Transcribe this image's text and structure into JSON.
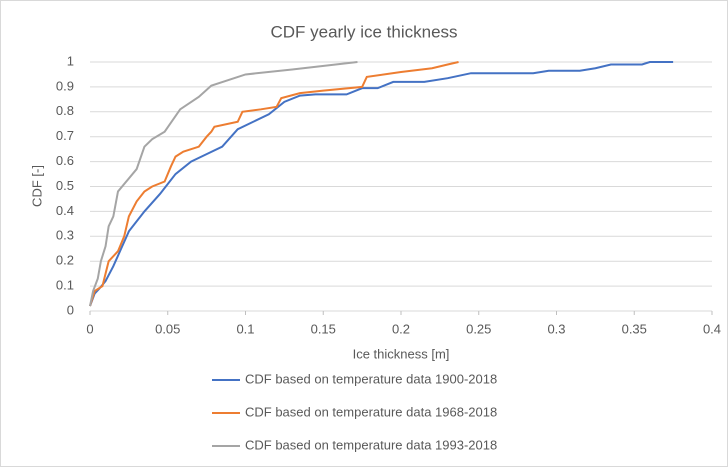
{
  "chart_data": {
    "type": "line",
    "title": "CDF yearly ice thickness",
    "x_label": "Ice thickness [m]",
    "y_label": "CDF [-]",
    "xlim": [
      0,
      0.4
    ],
    "xticks": [
      0,
      0.05,
      0.1,
      0.15,
      0.2,
      0.25,
      0.3,
      0.35,
      0.4
    ],
    "ylim": [
      0,
      1
    ],
    "yticks": [
      0,
      0.1,
      0.2,
      0.3,
      0.4,
      0.5,
      0.6,
      0.7,
      0.8,
      0.9,
      1
    ],
    "grid": true,
    "legend": "bottom",
    "series": [
      {
        "name": "CDF based on temperature data 1900-2018",
        "color": "#4472c4",
        "x": [
          0,
          0.003,
          0.006,
          0.01,
          0.015,
          0.02,
          0.025,
          0.035,
          0.045,
          0.055,
          0.065,
          0.075,
          0.085,
          0.095,
          0.105,
          0.115,
          0.125,
          0.135,
          0.145,
          0.165,
          0.175,
          0.185,
          0.195,
          0.215,
          0.23,
          0.245,
          0.285,
          0.295,
          0.315,
          0.325,
          0.335,
          0.355,
          0.36,
          0.375
        ],
        "values": [
          0.02,
          0.07,
          0.09,
          0.12,
          0.18,
          0.25,
          0.32,
          0.4,
          0.47,
          0.55,
          0.6,
          0.63,
          0.66,
          0.73,
          0.76,
          0.79,
          0.84,
          0.865,
          0.87,
          0.87,
          0.895,
          0.895,
          0.92,
          0.92,
          0.935,
          0.955,
          0.955,
          0.965,
          0.965,
          0.975,
          0.99,
          0.99,
          1.0,
          1.0
        ]
      },
      {
        "name": "CDF based on temperature data 1968-2018",
        "color": "#ed7d31",
        "x": [
          0,
          0.003,
          0.008,
          0.01,
          0.012,
          0.018,
          0.022,
          0.025,
          0.03,
          0.035,
          0.04,
          0.048,
          0.052,
          0.055,
          0.06,
          0.07,
          0.075,
          0.078,
          0.08,
          0.095,
          0.098,
          0.11,
          0.12,
          0.123,
          0.135,
          0.15,
          0.175,
          0.178,
          0.2,
          0.22,
          0.23,
          0.237
        ],
        "values": [
          0.02,
          0.08,
          0.1,
          0.15,
          0.2,
          0.24,
          0.3,
          0.38,
          0.44,
          0.48,
          0.5,
          0.52,
          0.58,
          0.62,
          0.64,
          0.66,
          0.7,
          0.72,
          0.74,
          0.76,
          0.8,
          0.81,
          0.82,
          0.855,
          0.875,
          0.885,
          0.9,
          0.94,
          0.96,
          0.975,
          0.99,
          1.0
        ]
      },
      {
        "name": "CDF based on temperature data 1993-2018",
        "color": "#a5a5a5",
        "x": [
          0,
          0.002,
          0.005,
          0.007,
          0.01,
          0.012,
          0.015,
          0.018,
          0.03,
          0.035,
          0.04,
          0.048,
          0.058,
          0.07,
          0.078,
          0.1,
          0.13,
          0.172
        ],
        "values": [
          0.02,
          0.08,
          0.13,
          0.2,
          0.26,
          0.34,
          0.38,
          0.48,
          0.57,
          0.66,
          0.69,
          0.72,
          0.81,
          0.86,
          0.905,
          0.95,
          0.97,
          1.0
        ]
      }
    ]
  }
}
